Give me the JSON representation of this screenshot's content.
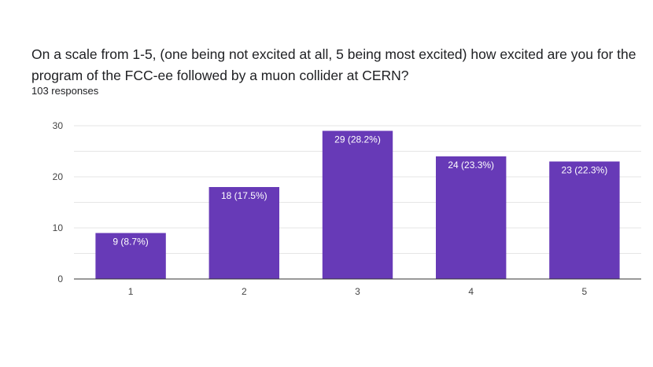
{
  "question": {
    "title": "On a scale from 1-5, (one being not excited at all, 5 being most excited) how excited are you for the program of the FCC-ee followed by a muon collider at CERN?",
    "responses": "103 responses"
  },
  "colors": {
    "bar": "#673ab7",
    "grid": "#e6e6e6",
    "axis": "#333333"
  },
  "chart_data": {
    "type": "bar",
    "categories": [
      "1",
      "2",
      "3",
      "4",
      "5"
    ],
    "values": [
      9,
      18,
      29,
      24,
      23
    ],
    "data_labels": [
      "9 (8.7%)",
      "18 (17.5%)",
      "29 (28.2%)",
      "24 (23.3%)",
      "23 (22.3%)"
    ],
    "yticks": [
      0,
      10,
      20,
      30
    ],
    "ylim": [
      0,
      30
    ],
    "grid": true,
    "legend": "none"
  }
}
